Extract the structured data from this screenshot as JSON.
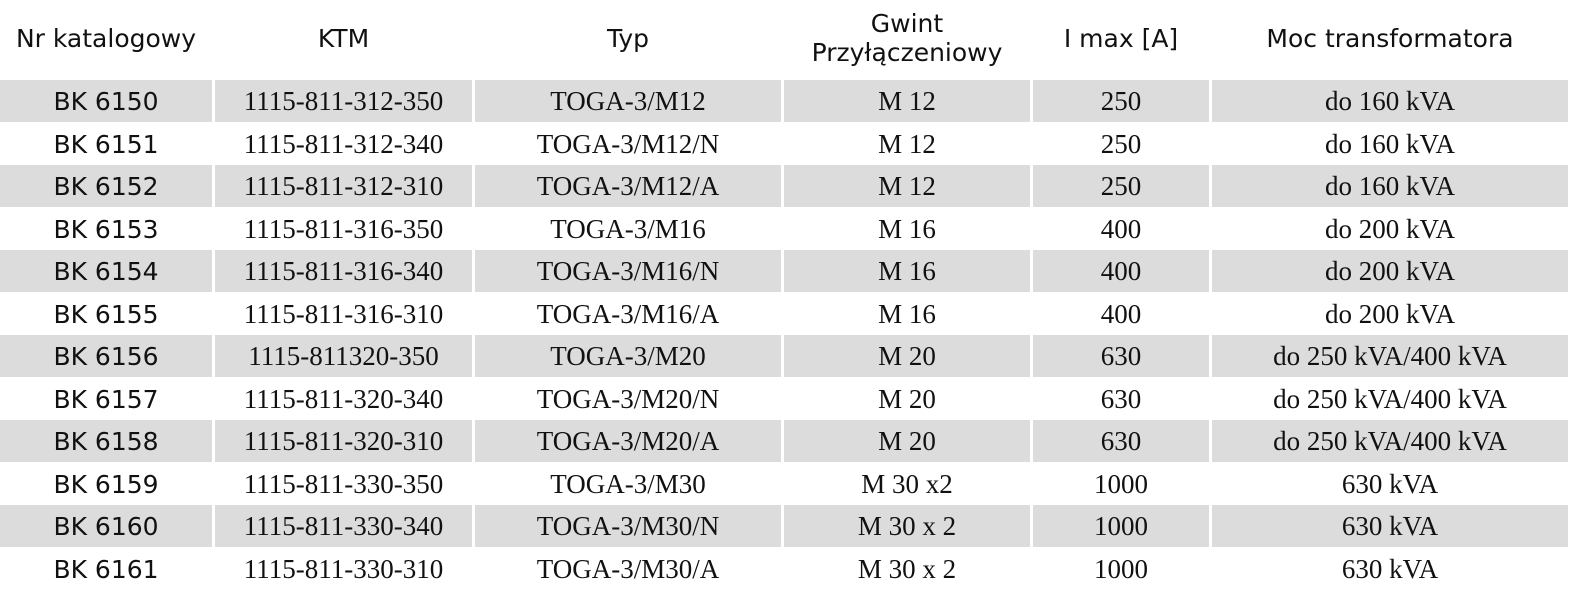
{
  "table": {
    "headers": [
      "Nr  katalogowy",
      "KTM",
      "Typ",
      "Gwint\nPrzyłączeniowy",
      "I max [A]",
      "Moc transformatora"
    ],
    "rows": [
      [
        "BK 6150",
        "1115-811-312-350",
        "TOGA-3/M12",
        "M 12",
        "250",
        "do 160 kVA"
      ],
      [
        "BK 6151",
        "1115-811-312-340",
        "TOGA-3/M12/N",
        "M 12",
        "250",
        "do 160 kVA"
      ],
      [
        "BK 6152",
        "1115-811-312-310",
        "TOGA-3/M12/A",
        "M 12",
        "250",
        "do 160 kVA"
      ],
      [
        "BK 6153",
        "1115-811-316-350",
        "TOGA-3/M16",
        "M 16",
        "400",
        "do 200 kVA"
      ],
      [
        "BK 6154",
        "1115-811-316-340",
        "TOGA-3/M16/N",
        "M 16",
        "400",
        "do 200 kVA"
      ],
      [
        "BK 6155",
        "1115-811-316-310",
        "TOGA-3/M16/A",
        "M 16",
        "400",
        "do 200 kVA"
      ],
      [
        "BK 6156",
        "1115-811320-350",
        "TOGA-3/M20",
        "M 20",
        "630",
        "do 250 kVA/400 kVA"
      ],
      [
        "BK 6157",
        "1115-811-320-340",
        "TOGA-3/M20/N",
        "M 20",
        "630",
        "do 250 kVA/400 kVA"
      ],
      [
        "BK 6158",
        "1115-811-320-310",
        "TOGA-3/M20/A",
        "M 20",
        "630",
        "do 250 kVA/400 kVA"
      ],
      [
        "BK 6159",
        "1115-811-330-350",
        "TOGA-3/M30",
        "M 30 x2",
        "1000",
        "630 kVA"
      ],
      [
        "BK 6160",
        "1115-811-330-340",
        "TOGA-3/M30/N",
        "M 30 x 2",
        "1000",
        "630 kVA"
      ],
      [
        "BK 6161",
        "1115-811-330-310",
        "TOGA-3/M30/A",
        "M 30 x 2",
        "1000",
        "630 kVA"
      ]
    ],
    "shaded_rows": [
      0,
      2,
      4,
      6,
      8,
      10
    ],
    "colors": {
      "row_shade": "#dcdcdc",
      "text": "#111111",
      "background": "#ffffff"
    }
  }
}
